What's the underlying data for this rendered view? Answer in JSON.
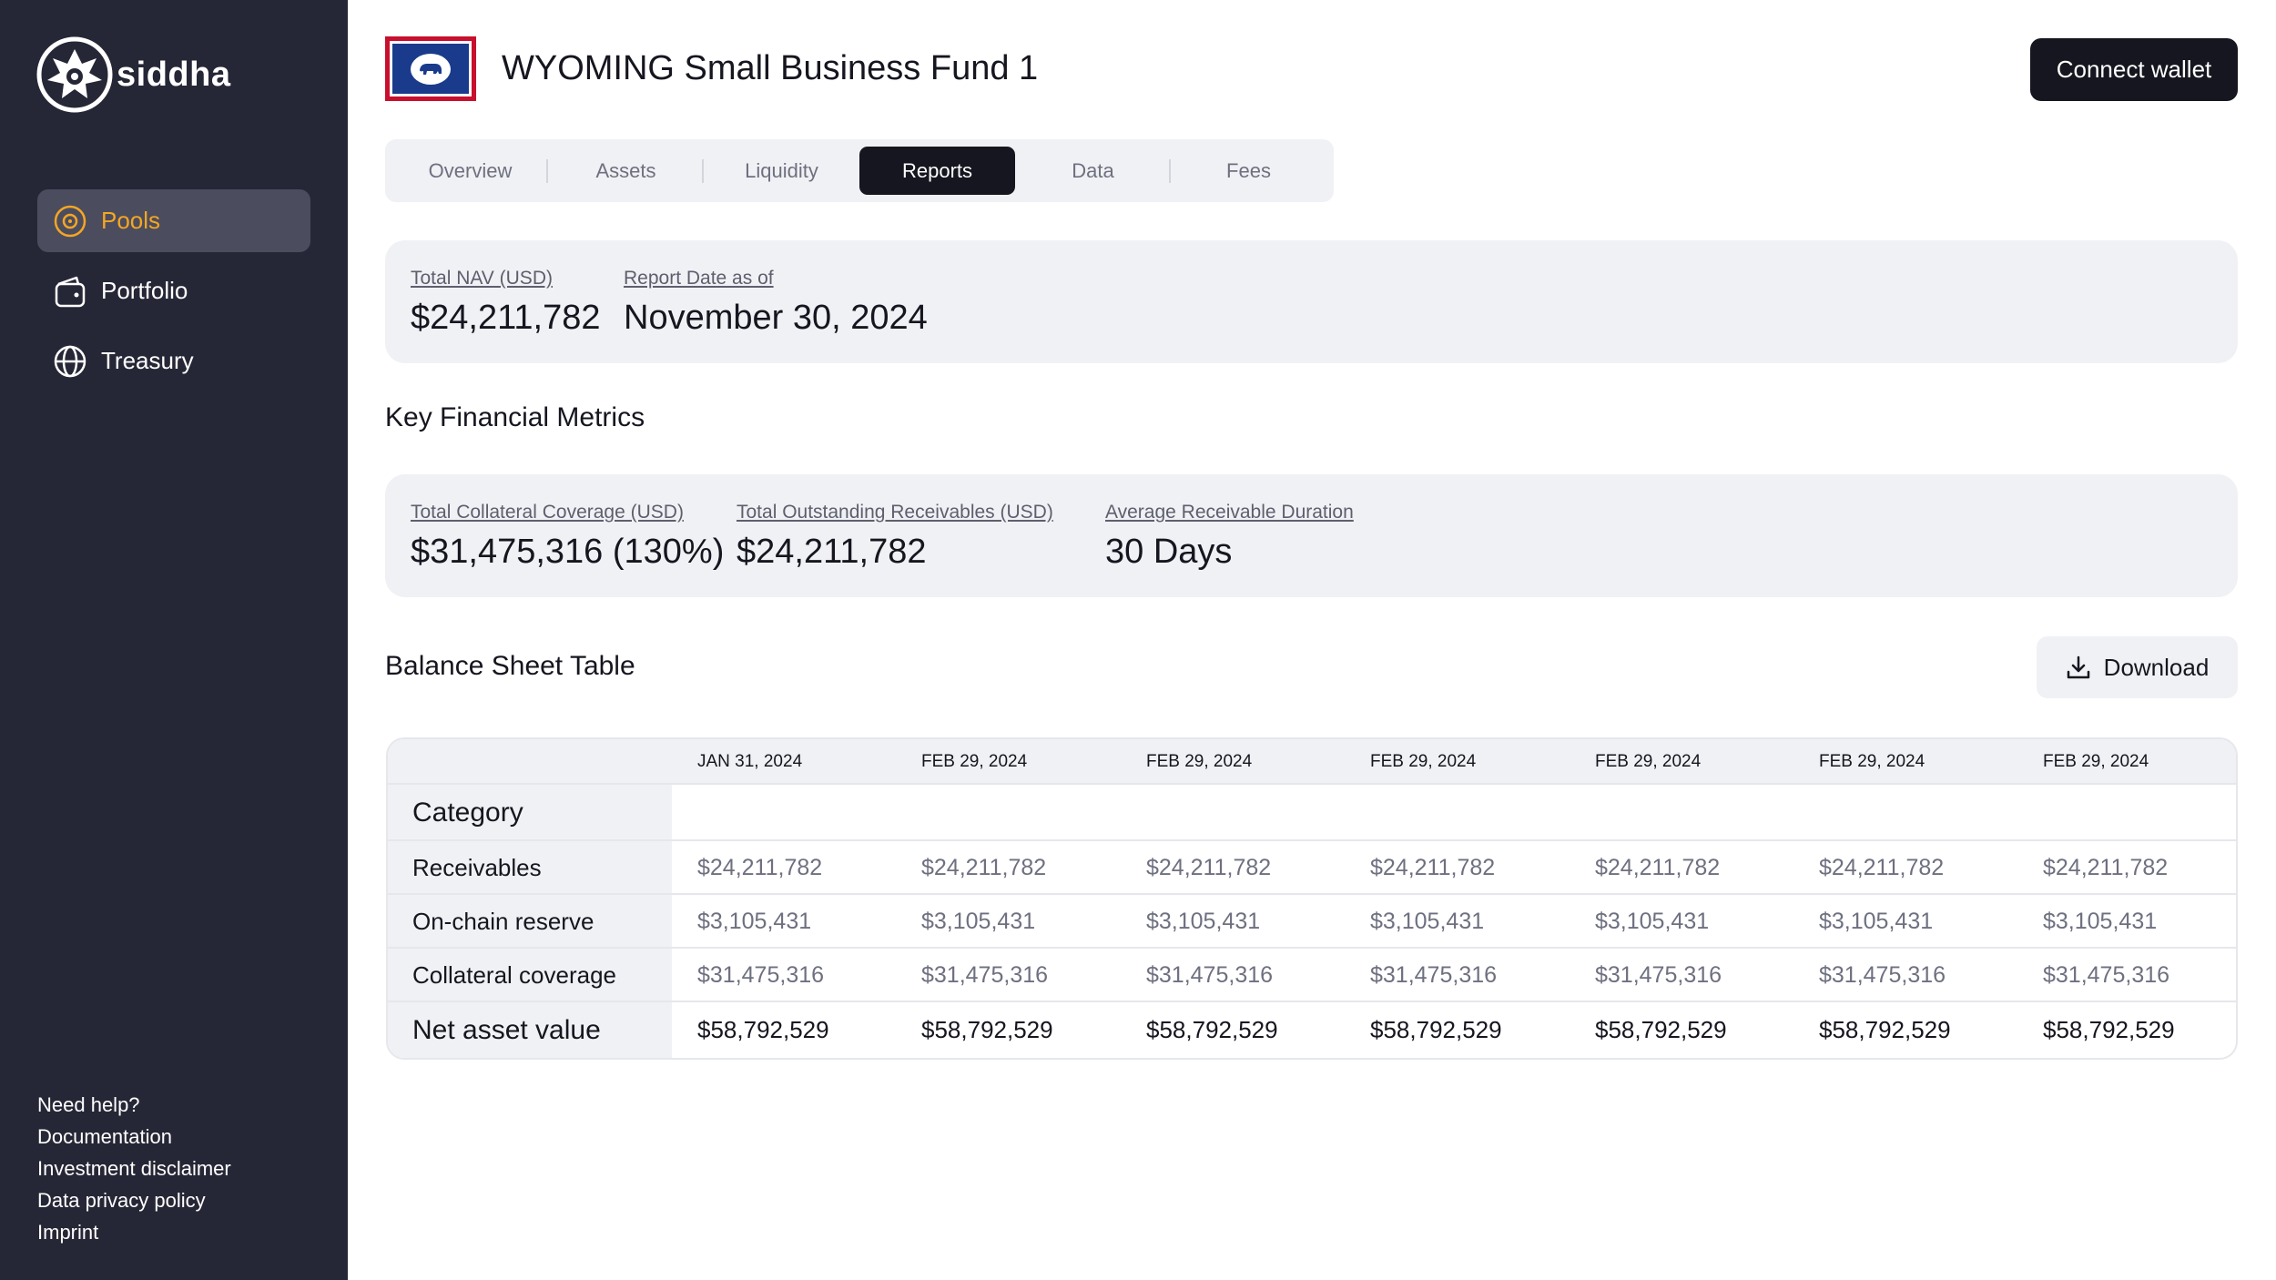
{
  "brand": {
    "name": "siddha"
  },
  "sidebar": {
    "items": [
      {
        "label": "Pools",
        "icon": "target-icon",
        "active": true
      },
      {
        "label": "Portfolio",
        "icon": "wallet-icon",
        "active": false
      },
      {
        "label": "Treasury",
        "icon": "globe-icon",
        "active": false
      }
    ],
    "help_links": [
      "Need help?",
      "Documentation",
      "Investment disclaimer",
      "Data privacy policy",
      "Imprint"
    ]
  },
  "header": {
    "title": "WYOMING Small Business Fund 1",
    "connect_label": "Connect wallet"
  },
  "tabs": [
    "Overview",
    "Assets",
    "Liquidity",
    "Reports",
    "Data",
    "Fees"
  ],
  "active_tab": "Reports",
  "nav_card": {
    "total_nav_label": "Total NAV (USD)",
    "total_nav_value": "$24,211,782",
    "report_date_label": "Report Date as of",
    "report_date_value": "November 30, 2024"
  },
  "metrics": {
    "title": "Key Financial Metrics",
    "collateral_label": "Total Collateral Coverage (USD)",
    "collateral_value": "$31,475,316 (130%)",
    "receivables_label": "Total Outstanding Receivables (USD)",
    "receivables_value": "$24,211,782",
    "duration_label": "Average Receivable Duration",
    "duration_value": "30 Days"
  },
  "balance_sheet": {
    "title": "Balance Sheet Table",
    "download_label": "Download",
    "category_label": "Category",
    "columns": [
      "JAN 31, 2024",
      "FEB 29, 2024",
      "FEB 29, 2024",
      "FEB 29, 2024",
      "FEB 29, 2024",
      "FEB 29, 2024",
      "FEB 29, 2024"
    ],
    "rows": [
      {
        "label": "Receivables",
        "values": [
          "$24,211,782",
          "$24,211,782",
          "$24,211,782",
          "$24,211,782",
          "$24,211,782",
          "$24,211,782",
          "$24,211,782"
        ]
      },
      {
        "label": "On-chain reserve",
        "values": [
          "$3,105,431",
          "$3,105,431",
          "$3,105,431",
          "$3,105,431",
          "$3,105,431",
          "$3,105,431",
          "$3,105,431"
        ]
      },
      {
        "label": "Collateral coverage",
        "values": [
          "$31,475,316",
          "$31,475,316",
          "$31,475,316",
          "$31,475,316",
          "$31,475,316",
          "$31,475,316",
          "$31,475,316"
        ]
      },
      {
        "label": "Net asset value",
        "values": [
          "$58,792,529",
          "$58,792,529",
          "$58,792,529",
          "$58,792,529",
          "$58,792,529",
          "$58,792,529",
          "$58,792,529"
        ]
      }
    ]
  },
  "colors": {
    "sidebar_bg": "#262736",
    "accent": "#f5a623",
    "card_bg": "#f0f1f4",
    "dark": "#15161f"
  }
}
